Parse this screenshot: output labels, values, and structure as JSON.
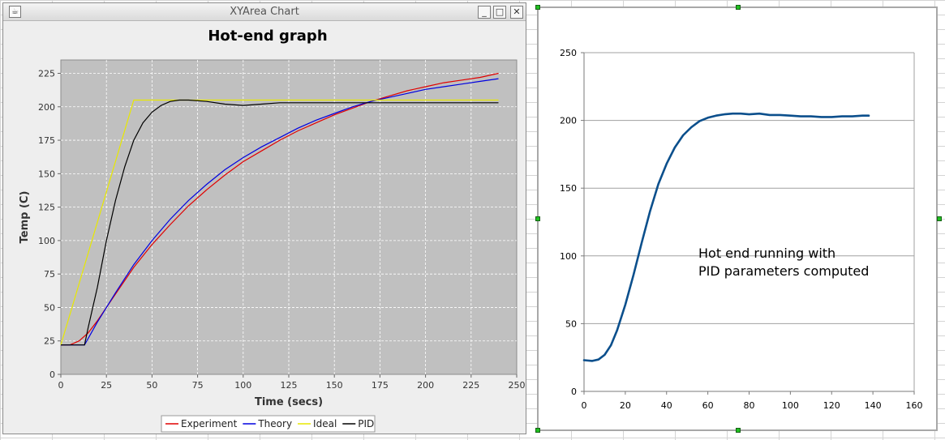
{
  "window": {
    "title": "XYArea Chart",
    "minimize_glyph": "_",
    "maximize_glyph": "□",
    "close_glyph": "✕",
    "app_icon": "java-app-icon"
  },
  "chart_data": [
    {
      "type": "line",
      "title": "Hot-end graph",
      "xlabel": "Time (secs)",
      "ylabel": "Temp (C)",
      "xlim": [
        0,
        250
      ],
      "ylim": [
        0,
        235
      ],
      "xticks": [
        0,
        25,
        50,
        75,
        100,
        125,
        150,
        175,
        200,
        225,
        250
      ],
      "yticks": [
        0,
        25,
        50,
        75,
        100,
        125,
        150,
        175,
        200,
        225
      ],
      "grid": true,
      "legend": "bottom",
      "series": [
        {
          "name": "Experiment",
          "color": "#e00000",
          "x": [
            0,
            5,
            10,
            15,
            20,
            25,
            30,
            40,
            50,
            60,
            70,
            80,
            90,
            100,
            110,
            120,
            130,
            140,
            150,
            160,
            170,
            180,
            190,
            200,
            210,
            220,
            230,
            240
          ],
          "y": [
            22,
            22,
            25,
            31,
            40,
            50,
            60,
            80,
            97,
            112,
            126,
            138,
            149,
            159,
            167,
            175,
            182,
            188,
            194,
            199,
            204,
            208,
            212,
            215,
            218,
            220,
            222,
            225
          ]
        },
        {
          "name": "Theory",
          "color": "#0000e0",
          "x": [
            0,
            5,
            10,
            13,
            20,
            30,
            40,
            50,
            60,
            70,
            80,
            90,
            100,
            110,
            120,
            130,
            140,
            150,
            160,
            170,
            180,
            190,
            200,
            210,
            220,
            230,
            240
          ],
          "y": [
            22,
            22,
            22,
            22,
            39,
            61,
            82,
            100,
            116,
            130,
            142,
            153,
            162,
            170,
            177,
            184,
            190,
            195,
            200,
            204,
            207,
            210,
            213,
            215,
            217,
            219,
            221
          ]
        },
        {
          "name": "Ideal",
          "color": "#e8e800",
          "x": [
            0,
            40,
            240
          ],
          "y": [
            22,
            205,
            205
          ]
        },
        {
          "name": "PID",
          "color": "#000000",
          "x": [
            0,
            13,
            15,
            20,
            25,
            30,
            35,
            40,
            45,
            50,
            55,
            60,
            65,
            70,
            80,
            90,
            100,
            110,
            120,
            140,
            160,
            180,
            200,
            240
          ],
          "y": [
            22,
            22,
            35,
            65,
            100,
            130,
            155,
            175,
            188,
            196,
            201,
            204,
            205,
            205,
            204,
            202,
            201,
            202,
            203,
            203,
            203,
            203,
            203,
            203
          ]
        }
      ]
    },
    {
      "type": "line",
      "title": "",
      "annotation": [
        "Hot end running with",
        "PID parameters computed"
      ],
      "xlim": [
        0,
        160
      ],
      "ylim": [
        0,
        250
      ],
      "xticks": [
        0,
        20,
        40,
        60,
        80,
        100,
        120,
        140,
        160
      ],
      "yticks": [
        0,
        50,
        100,
        150,
        200,
        250
      ],
      "grid": true,
      "legend": "none",
      "series": [
        {
          "color": "#0b4f8c",
          "x": [
            0,
            4,
            7,
            10,
            13,
            16,
            20,
            24,
            28,
            32,
            36,
            40,
            44,
            48,
            52,
            56,
            60,
            64,
            68,
            72,
            76,
            80,
            85,
            90,
            95,
            100,
            105,
            110,
            115,
            120,
            125,
            130,
            135,
            138
          ],
          "y": [
            23,
            22.5,
            23.5,
            27,
            34,
            45,
            64,
            86,
            110,
            133,
            153,
            168,
            180,
            189,
            195,
            199.5,
            202,
            203.5,
            204.5,
            205,
            205,
            204.5,
            205,
            204,
            204,
            203.5,
            203,
            203,
            202.5,
            202.5,
            203,
            203,
            203.5,
            203.5
          ]
        }
      ]
    }
  ]
}
